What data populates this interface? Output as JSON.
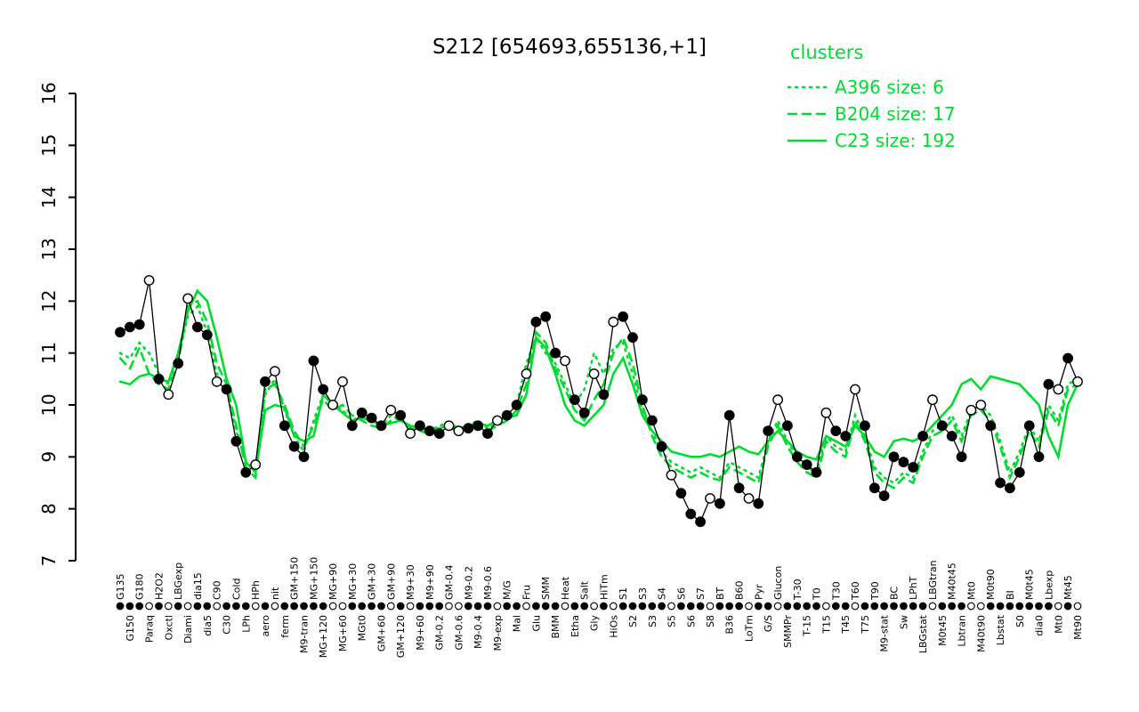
{
  "title": "S212 [654693,655136,+1]",
  "legend": {
    "heading": "clusters",
    "entries": [
      {
        "label": "A396 size: 6",
        "style": "dotted"
      },
      {
        "label": "B204 size: 17",
        "style": "dashed"
      },
      {
        "label": "C23 size: 192",
        "style": "solid"
      }
    ]
  },
  "colors": {
    "cluster_green": "#00DC30",
    "point_filled": "#000000",
    "point_open": "#FFFFFF",
    "axis": "#000000"
  },
  "chart_data": {
    "type": "line",
    "title": "S212 [654693,655136,+1]",
    "ylim": [
      7,
      16
    ],
    "yticks": [
      7,
      8,
      9,
      10,
      11,
      12,
      13,
      14,
      15,
      16
    ],
    "legend_position": "top-right",
    "grid": false,
    "categories": [
      "G135",
      "G150",
      "G180",
      "Paraq",
      "H2O2",
      "Oxctl",
      "LBGexp",
      "Diami",
      "dia15",
      "dia5",
      "C90",
      "C30",
      "Cold",
      "LPh",
      "HPh",
      "aero",
      "nit",
      "ferm",
      "GM+150",
      "M9-tran",
      "MG+150",
      "MG+120",
      "MG+90",
      "MG+60",
      "MG+30",
      "MGt0",
      "GM+30",
      "GM+60",
      "GM+90",
      "GM+120",
      "M9+30",
      "M9+60",
      "M9+90",
      "GM-0.2",
      "GM-0.4",
      "GM-0.6",
      "M9-0.2",
      "M9-0.4",
      "M9-0.6",
      "M9-exp",
      "M/G",
      "Mal",
      "Fru",
      "Glu",
      "SMM",
      "BMM",
      "Heat",
      "Etha",
      "Salt",
      "Gly",
      "HiTm",
      "HiOs",
      "S1",
      "S2",
      "S3",
      "S3",
      "S4",
      "S5",
      "S6",
      "S6",
      "S7",
      "S8",
      "BT",
      "B36",
      "B60",
      "LoTm",
      "Pyr",
      "G/S",
      "Glucon",
      "SMMPr",
      "T-30",
      "T-15",
      "T0",
      "T15",
      "T30",
      "T45",
      "T60",
      "T75",
      "T90",
      "M9-stat",
      "BC",
      "Sw",
      "LPhT",
      "LBGstat",
      "LBGtran",
      "M0t45",
      "M40t45",
      "Lbtran",
      "Mt0",
      "M40t90",
      "M0t90",
      "Lbstat",
      "BI",
      "S0",
      "M0t45",
      "dia0",
      "Lbexp",
      "Mt0",
      "Mt45",
      "Mt90"
    ],
    "open_circle": [
      0,
      0,
      0,
      1,
      0,
      1,
      0,
      1,
      0,
      0,
      1,
      0,
      0,
      0,
      1,
      0,
      1,
      0,
      0,
      0,
      0,
      0,
      1,
      1,
      0,
      0,
      0,
      0,
      1,
      0,
      1,
      0,
      0,
      0,
      1,
      1,
      0,
      0,
      0,
      1,
      0,
      0,
      1,
      0,
      0,
      0,
      1,
      0,
      0,
      1,
      0,
      1,
      0,
      0,
      0,
      0,
      0,
      1,
      0,
      0,
      0,
      1,
      0,
      0,
      0,
      1,
      0,
      0,
      1,
      0,
      0,
      0,
      0,
      1,
      0,
      0,
      1,
      0,
      0,
      0,
      0,
      0,
      0,
      0,
      1,
      0,
      0,
      0,
      1,
      1,
      0,
      0,
      0,
      0,
      0,
      0,
      0,
      1,
      0,
      1
    ],
    "series": [
      {
        "name": "S212 expression",
        "color": "#000000",
        "style": "solid-points",
        "values": [
          11.4,
          11.5,
          11.55,
          12.4,
          10.5,
          10.2,
          10.8,
          12.05,
          11.5,
          11.35,
          10.45,
          10.3,
          9.3,
          8.7,
          8.85,
          10.45,
          10.65,
          9.6,
          9.2,
          9.0,
          10.85,
          10.3,
          10.0,
          10.45,
          9.6,
          9.85,
          9.75,
          9.6,
          9.9,
          9.8,
          9.45,
          9.6,
          9.5,
          9.45,
          9.6,
          9.5,
          9.55,
          9.6,
          9.45,
          9.7,
          9.8,
          10.0,
          10.6,
          11.6,
          11.7,
          11.0,
          10.85,
          10.1,
          9.85,
          10.6,
          10.2,
          11.6,
          11.7,
          11.3,
          10.1,
          9.7,
          9.2,
          8.65,
          8.3,
          7.9,
          7.75,
          8.2,
          8.1,
          9.8,
          8.4,
          8.2,
          8.1,
          9.5,
          10.1,
          9.6,
          9.0,
          8.85,
          8.7,
          9.85,
          9.5,
          9.4,
          10.3,
          9.6,
          8.4,
          8.25,
          9.0,
          8.9,
          8.8,
          9.4,
          10.1,
          9.6,
          9.4,
          9.0,
          9.9,
          10.0,
          9.6,
          8.5,
          8.4,
          8.7,
          9.6,
          9.0,
          10.4,
          10.3,
          10.9,
          10.45
        ]
      },
      {
        "name": "A396",
        "color": "#00DC30",
        "style": "dotted",
        "values": [
          11.0,
          10.9,
          11.2,
          11.0,
          10.6,
          10.4,
          10.9,
          11.7,
          11.9,
          11.4,
          10.6,
          10.3,
          9.5,
          8.9,
          8.8,
          10.2,
          10.5,
          9.9,
          9.4,
          9.1,
          9.7,
          10.2,
          10.0,
          9.9,
          9.7,
          9.8,
          9.7,
          9.6,
          9.8,
          9.7,
          9.6,
          9.55,
          9.5,
          9.6,
          9.65,
          9.55,
          9.6,
          9.7,
          9.55,
          9.65,
          9.8,
          10.0,
          10.8,
          11.3,
          11.0,
          10.8,
          10.4,
          10.0,
          10.3,
          11.0,
          10.6,
          11.1,
          11.2,
          10.6,
          9.9,
          9.5,
          9.1,
          8.9,
          8.8,
          8.7,
          8.8,
          8.7,
          8.6,
          8.9,
          8.8,
          8.7,
          8.6,
          9.3,
          9.7,
          9.3,
          9.0,
          8.8,
          8.7,
          9.4,
          9.2,
          9.1,
          9.8,
          9.4,
          8.8,
          8.6,
          8.5,
          8.7,
          8.6,
          9.1,
          9.5,
          9.6,
          9.8,
          9.4,
          9.9,
          10.0,
          9.8,
          9.3,
          8.7,
          9.1,
          9.6,
          9.3,
          10.0,
          9.7,
          10.4,
          10.5
        ]
      },
      {
        "name": "B204",
        "color": "#00DC30",
        "style": "dashed",
        "values": [
          10.9,
          10.7,
          11.1,
          10.6,
          10.4,
          10.3,
          10.8,
          11.9,
          12.0,
          11.6,
          10.8,
          10.4,
          9.6,
          8.8,
          8.6,
          10.3,
          10.4,
          10.0,
          9.5,
          9.2,
          9.6,
          10.1,
          9.9,
          10.0,
          9.8,
          9.7,
          9.6,
          9.55,
          9.7,
          9.75,
          9.55,
          9.5,
          9.45,
          9.5,
          9.55,
          9.5,
          9.55,
          9.6,
          9.5,
          9.6,
          9.7,
          9.9,
          10.4,
          11.4,
          11.2,
          10.7,
          10.3,
          9.9,
          9.7,
          10.1,
          10.4,
          11.0,
          11.3,
          10.8,
          10.0,
          9.4,
          9.0,
          8.8,
          8.7,
          8.6,
          8.7,
          8.6,
          8.55,
          8.8,
          8.7,
          8.6,
          8.5,
          9.2,
          9.6,
          9.2,
          8.9,
          8.7,
          8.6,
          9.3,
          9.1,
          9.0,
          9.7,
          9.3,
          8.7,
          8.5,
          8.4,
          8.6,
          8.5,
          9.0,
          9.4,
          9.5,
          9.7,
          9.3,
          9.8,
          9.9,
          9.7,
          9.2,
          8.6,
          9.0,
          9.5,
          9.2,
          9.9,
          9.6,
          10.3,
          10.4
        ]
      },
      {
        "name": "C23",
        "color": "#00DC30",
        "style": "solid",
        "values": [
          10.45,
          10.4,
          10.55,
          10.6,
          10.5,
          10.45,
          11.0,
          11.8,
          12.2,
          12.0,
          11.3,
          10.5,
          10.0,
          8.9,
          8.7,
          9.9,
          10.0,
          9.95,
          9.4,
          9.3,
          9.4,
          10.2,
          10.0,
          9.85,
          9.7,
          9.75,
          9.7,
          9.6,
          9.65,
          9.7,
          9.6,
          9.55,
          9.5,
          9.55,
          9.6,
          9.55,
          9.6,
          9.65,
          9.6,
          9.7,
          9.75,
          9.8,
          10.2,
          11.3,
          11.1,
          10.6,
          10.0,
          9.7,
          9.6,
          9.8,
          10.0,
          10.6,
          10.9,
          10.4,
          9.8,
          9.5,
          9.3,
          9.1,
          9.05,
          9.0,
          9.0,
          9.05,
          9.0,
          9.1,
          9.2,
          9.1,
          9.05,
          9.3,
          9.5,
          9.3,
          9.1,
          9.0,
          8.95,
          9.4,
          9.3,
          9.2,
          9.6,
          9.4,
          9.1,
          9.0,
          9.3,
          9.35,
          9.3,
          9.4,
          9.6,
          9.8,
          10.0,
          10.4,
          10.5,
          10.3,
          10.55,
          10.5,
          10.45,
          10.4,
          10.2,
          10.0,
          9.4,
          9.0,
          10.0,
          10.4
        ]
      }
    ]
  }
}
